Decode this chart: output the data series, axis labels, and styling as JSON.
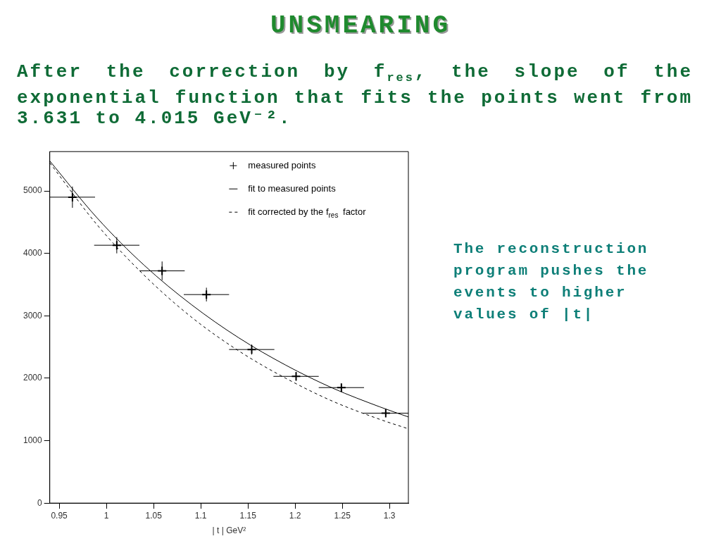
{
  "chart_data": {
    "type": "scatter",
    "title": "UNSMEARING",
    "subtitle": "After the correction by f$_{res}$, the slope of the exponential function that fits the points went from 3.631 to 4.015 GeV⁻².",
    "xlabel": "| t | GeV²",
    "annotations": [
      "The reconstruction program pushes the events to higher values of |t|"
    ],
    "xlim": [
      0.94,
      1.32
    ],
    "xticks": [
      0.95,
      1,
      1.05,
      1.1,
      1.15,
      1.2,
      1.25,
      1.3
    ],
    "ylim": [
      0,
      5630
    ],
    "yticks": [
      0,
      1000,
      2000,
      3000,
      4000,
      5000
    ],
    "grid": false,
    "legend": "top right",
    "series": [
      {
        "name": "measured points",
        "color": "#000000",
        "marker": "cross",
        "x": [
          0.964,
          1.011,
          1.059,
          1.106,
          1.154,
          1.201,
          1.249,
          1.296
        ],
        "values": [
          4900,
          4130,
          3720,
          3340,
          2460,
          2030,
          1850,
          1440
        ],
        "errors": [
          170,
          130,
          150,
          110,
          80,
          70,
          60,
          50
        ],
        "xerrors": [
          0.024,
          0.024,
          0.024,
          0.024,
          0.024,
          0.024,
          0.024,
          0.024
        ]
      },
      {
        "name": "fit to measured points",
        "type": "line",
        "color": "#000000",
        "marker": "none",
        "line_style": "solid",
        "x": [
          0.94,
          0.99,
          1.04,
          1.09,
          1.14,
          1.19,
          1.24,
          1.29,
          1.32
        ],
        "values": [
          5480,
          4570,
          3810,
          3180,
          2650,
          2210,
          1840,
          1540,
          1380
        ]
      },
      {
        "name": "fit corrected by the f$_{res}$ factor",
        "type": "line",
        "color": "#000000",
        "marker": "none",
        "line_style": "dashed",
        "x": [
          0.94,
          0.99,
          1.04,
          1.09,
          1.14,
          1.19,
          1.24,
          1.29,
          1.32
        ],
        "values": [
          5450,
          4460,
          3650,
          2980,
          2440,
          2000,
          1630,
          1340,
          1190
        ]
      }
    ]
  }
}
